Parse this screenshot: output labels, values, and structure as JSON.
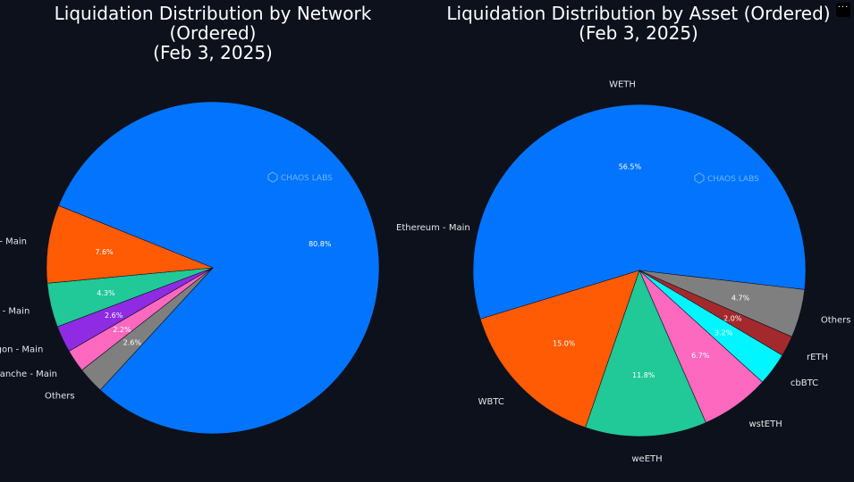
{
  "menu": {
    "more_glyph": "···"
  },
  "watermark": "CHAOS LABS",
  "chart_data": [
    {
      "type": "pie",
      "title": "Liquidation Distribution by Network (Ordered)\n(Feb 3, 2025)",
      "start_angle": "clockwise from Arbitrum - Main boundary",
      "slices": [
        {
          "label": "Ethereum - Main",
          "value": 80.8,
          "pct_label": "80.8%",
          "color": "#0374fe"
        },
        {
          "label": "Others",
          "value": 2.6,
          "pct_label": "2.6%",
          "color": "#7f7f7f"
        },
        {
          "label": "Avalanche - Main",
          "value": 2.2,
          "pct_label": "2.2%",
          "color": "#fe69c0"
        },
        {
          "label": "Polygon - Main",
          "value": 2.6,
          "pct_label": "2.6%",
          "color": "#8e2be3"
        },
        {
          "label": "Base - Main",
          "value": 4.3,
          "pct_label": "4.3%",
          "color": "#20c997"
        },
        {
          "label": "Arbitrum - Main",
          "value": 7.6,
          "pct_label": "7.6%",
          "color": "#ff5b05"
        }
      ]
    },
    {
      "type": "pie",
      "title": "Liquidation Distribution by Asset (Ordered)\n(Feb 3, 2025)",
      "slices": [
        {
          "label": "WETH",
          "value": 56.5,
          "pct_label": "56.5%",
          "color": "#0374fe"
        },
        {
          "label": "Others",
          "value": 4.7,
          "pct_label": "4.7%",
          "color": "#7f7f7f"
        },
        {
          "label": "rETH",
          "value": 2.0,
          "pct_label": "2.0%",
          "color": "#a3292d"
        },
        {
          "label": "cbBTC",
          "value": 3.2,
          "pct_label": "3.2%",
          "color": "#00f6ff"
        },
        {
          "label": "wstETH",
          "value": 6.7,
          "pct_label": "6.7%",
          "color": "#fe69c0"
        },
        {
          "label": "weETH",
          "value": 11.8,
          "pct_label": "11.8%",
          "color": "#20c997"
        },
        {
          "label": "WBTC",
          "value": 15.0,
          "pct_label": "15.0%",
          "color": "#ff5b05"
        }
      ]
    }
  ]
}
